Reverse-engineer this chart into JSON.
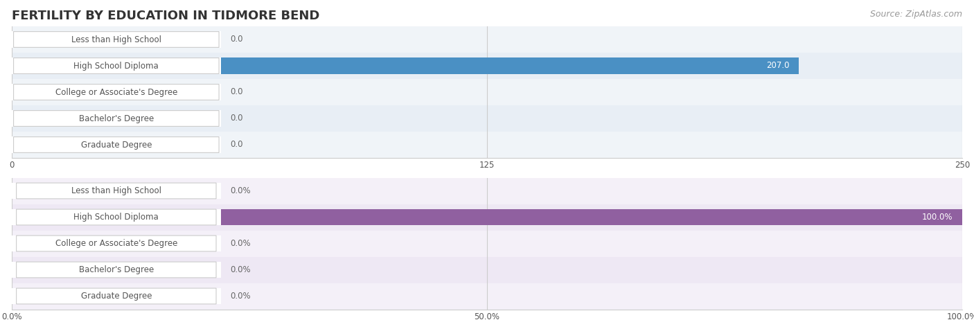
{
  "title": "FERTILITY BY EDUCATION IN TIDMORE BEND",
  "source": "Source: ZipAtlas.com",
  "categories": [
    "Less than High School",
    "High School Diploma",
    "College or Associate's Degree",
    "Bachelor's Degree",
    "Graduate Degree"
  ],
  "chart1": {
    "values": [
      0.0,
      207.0,
      0.0,
      0.0,
      0.0
    ],
    "xlim": [
      0,
      250.0
    ],
    "xticks": [
      0.0,
      125.0,
      250.0
    ],
    "bar_color": "#7aadd4",
    "bar_color_highlight": "#4a90c4",
    "bar_bg_color": "#e8eef5",
    "row_bg_odd": "#f0f4f8",
    "row_bg_even": "#e8eef5"
  },
  "chart2": {
    "values": [
      0.0,
      100.0,
      0.0,
      0.0,
      0.0
    ],
    "xlim": [
      0,
      100.0
    ],
    "xticks": [
      0.0,
      50.0,
      100.0
    ],
    "xtick_labels": [
      "0.0%",
      "50.0%",
      "100.0%"
    ],
    "bar_color": "#b088b8",
    "bar_color_highlight": "#9060a0",
    "bar_bg_color": "#eee8f4",
    "row_bg_odd": "#f4f0f8",
    "row_bg_even": "#eee8f4"
  },
  "label_color": "#555555",
  "value_color_inside": "#ffffff",
  "value_color_outside": "#666666",
  "title_color": "#333333",
  "source_color": "#999999",
  "grid_color": "#cccccc",
  "label_bg_color": "#ffffff",
  "label_border_color": "#cccccc"
}
